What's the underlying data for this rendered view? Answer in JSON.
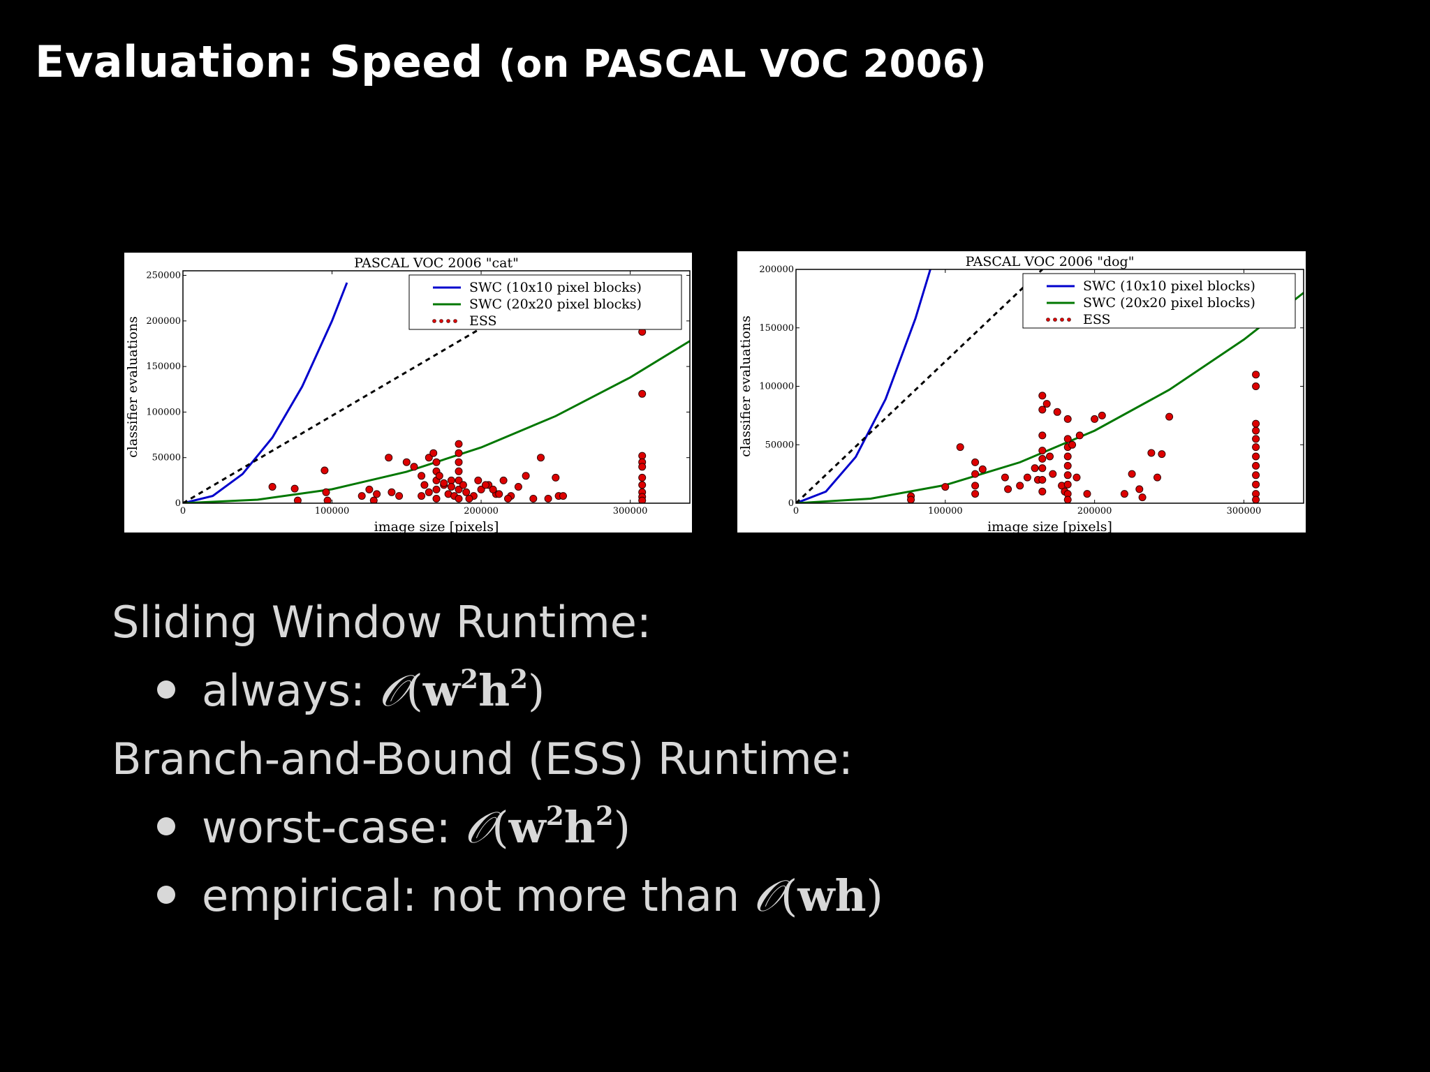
{
  "slide": {
    "title_main": "Evaluation: Speed",
    "title_sub": "(on PASCAL VOC 2006)"
  },
  "bullets": {
    "sliding_heading": "Sliding Window Runtime:",
    "always_label": "always:",
    "bnb_heading": "Branch-and-Bound (ESS) Runtime:",
    "worst_label": "worst-case:",
    "empirical_label": "empirical:",
    "empirical_text": "not more than",
    "complexity_quadratic": {
      "O": "𝒪",
      "w": "w",
      "exp": "2",
      "h": "h"
    },
    "complexity_linear": {
      "O": "𝒪",
      "wh": "wh"
    }
  },
  "colors": {
    "swc10": "#0000cc",
    "swc20": "#007700",
    "ess": "#000000",
    "points": "#dd0000"
  },
  "chart_data": [
    {
      "type": "scatter",
      "title": "PASCAL VOC 2006 \"cat\"",
      "xlabel": "image size [pixels]",
      "ylabel": "classifier evaluations",
      "xlim": [
        0,
        340000
      ],
      "ylim": [
        0,
        255000
      ],
      "xticks": [
        0,
        100000,
        200000,
        300000
      ],
      "yticks": [
        0,
        50000,
        100000,
        150000,
        200000,
        250000
      ],
      "legend": {
        "placement": "top-right",
        "entries": [
          "SWC (10x10 pixel blocks)",
          "SWC (20x20 pixel blocks)",
          "ESS"
        ]
      },
      "series": [
        {
          "name": "SWC (10x10 pixel blocks)",
          "kind": "line",
          "x": [
            0,
            20000,
            40000,
            60000,
            80000,
            100000,
            110000
          ],
          "y": [
            0,
            8000,
            32000,
            72000,
            128000,
            200000,
            242000
          ]
        },
        {
          "name": "SWC (20x20 pixel blocks)",
          "kind": "line",
          "x": [
            0,
            50000,
            100000,
            150000,
            200000,
            250000,
            300000,
            340000
          ],
          "y": [
            0,
            3800,
            15300,
            34500,
            61200,
            95600,
            138000,
            178000
          ]
        },
        {
          "name": "ESS",
          "kind": "dashed",
          "x": [
            0,
            250000
          ],
          "y": [
            0,
            240000
          ]
        },
        {
          "name": "ESS",
          "kind": "points",
          "x": [
            60000,
            75000,
            77000,
            95000,
            96000,
            97000,
            120000,
            125000,
            128000,
            130000,
            138000,
            140000,
            145000,
            150000,
            155000,
            160000,
            162000,
            165000,
            168000,
            170000,
            170000,
            170000,
            170000,
            170000,
            172000,
            175000,
            178000,
            180000,
            182000,
            185000,
            185000,
            185000,
            185000,
            185000,
            185000,
            185000,
            188000,
            190000,
            195000,
            200000,
            205000,
            210000,
            215000,
            220000,
            225000,
            230000,
            235000,
            240000,
            245000,
            250000,
            252000,
            255000,
            160000,
            165000,
            175000,
            180000,
            192000,
            198000,
            203000,
            208000,
            212000,
            218000,
            308000,
            308000,
            308000,
            308000,
            308000,
            308000,
            308000,
            308000,
            308000,
            308000
          ],
          "y": [
            18000,
            16000,
            3000,
            36000,
            12000,
            3000,
            8000,
            15000,
            3000,
            10000,
            50000,
            12000,
            8000,
            45000,
            40000,
            30000,
            20000,
            50000,
            55000,
            45000,
            35000,
            25000,
            15000,
            5000,
            30000,
            20000,
            10000,
            25000,
            8000,
            65000,
            55000,
            45000,
            35000,
            25000,
            15000,
            5000,
            20000,
            12000,
            8000,
            15000,
            20000,
            10000,
            25000,
            8000,
            18000,
            30000,
            5000,
            50000,
            5000,
            28000,
            8000,
            8000,
            8000,
            12000,
            22000,
            18000,
            5000,
            25000,
            20000,
            15000,
            10000,
            5000,
            188000,
            120000,
            52000,
            45000,
            40000,
            28000,
            20000,
            12000,
            7000,
            3000
          ]
        }
      ]
    },
    {
      "type": "scatter",
      "title": "PASCAL VOC 2006 \"dog\"",
      "xlabel": "image size [pixels]",
      "ylabel": "classifier evaluations",
      "xlim": [
        0,
        340000
      ],
      "ylim": [
        0,
        200000
      ],
      "xticks": [
        0,
        100000,
        200000,
        300000
      ],
      "yticks": [
        0,
        50000,
        100000,
        150000,
        200000
      ],
      "legend": {
        "placement": "top-right",
        "entries": [
          "SWC (10x10 pixel blocks)",
          "SWC (20x20 pixel blocks)",
          "ESS"
        ]
      },
      "series": [
        {
          "name": "SWC (10x10 pixel blocks)",
          "kind": "line",
          "x": [
            0,
            20000,
            40000,
            60000,
            80000,
            90000
          ],
          "y": [
            0,
            9900,
            39500,
            89000,
            158000,
            200000
          ]
        },
        {
          "name": "SWC (20x20 pixel blocks)",
          "kind": "line",
          "x": [
            0,
            50000,
            100000,
            150000,
            200000,
            250000,
            300000,
            340000
          ],
          "y": [
            0,
            3900,
            15500,
            35000,
            62000,
            97000,
            140000,
            180000
          ]
        },
        {
          "name": "ESS",
          "kind": "dashed",
          "x": [
            0,
            165000
          ],
          "y": [
            0,
            200000
          ]
        },
        {
          "name": "ESS",
          "kind": "points",
          "x": [
            77000,
            77000,
            100000,
            110000,
            120000,
            120000,
            120000,
            120000,
            125000,
            140000,
            142000,
            150000,
            155000,
            160000,
            162000,
            165000,
            165000,
            165000,
            165000,
            165000,
            165000,
            165000,
            165000,
            168000,
            170000,
            172000,
            175000,
            178000,
            180000,
            182000,
            182000,
            182000,
            182000,
            182000,
            182000,
            182000,
            182000,
            182000,
            185000,
            188000,
            190000,
            195000,
            200000,
            205000,
            220000,
            225000,
            230000,
            232000,
            238000,
            242000,
            245000,
            250000,
            308000,
            308000,
            308000,
            308000,
            308000,
            308000,
            308000,
            308000,
            308000,
            308000,
            308000,
            308000
          ],
          "y": [
            6000,
            3000,
            14000,
            48000,
            35000,
            25000,
            15000,
            8000,
            29000,
            22000,
            12000,
            15000,
            22000,
            30000,
            20000,
            92000,
            80000,
            58000,
            45000,
            38000,
            30000,
            20000,
            10000,
            85000,
            40000,
            25000,
            78000,
            15000,
            10000,
            72000,
            55000,
            48000,
            40000,
            32000,
            24000,
            16000,
            8000,
            3000,
            50000,
            22000,
            58000,
            8000,
            72000,
            75000,
            8000,
            25000,
            12000,
            5000,
            43000,
            22000,
            42000,
            74000,
            110000,
            100000,
            68000,
            62000,
            55000,
            48000,
            40000,
            32000,
            24000,
            16000,
            8000,
            3000
          ]
        }
      ]
    }
  ]
}
